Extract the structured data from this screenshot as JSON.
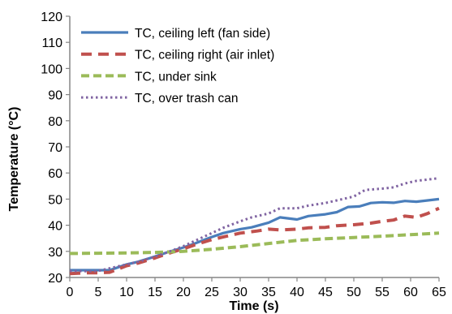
{
  "chart_data": {
    "type": "line",
    "title": "",
    "xlabel": "Time (s)",
    "ylabel": "Temperature (°C)",
    "xlim": [
      0,
      65
    ],
    "ylim": [
      20,
      120
    ],
    "xticks": [
      0,
      5,
      10,
      15,
      20,
      25,
      30,
      35,
      40,
      45,
      50,
      55,
      60,
      65
    ],
    "yticks": [
      20,
      30,
      40,
      50,
      60,
      70,
      80,
      90,
      100,
      110,
      120
    ],
    "grid": false,
    "legend_position": "top-left",
    "series": [
      {
        "name": "TC, ceiling left (fan side)",
        "color": "#4a7ebb",
        "style": "solid",
        "points": [
          [
            0,
            22.8
          ],
          [
            3,
            22.8
          ],
          [
            5,
            22.8
          ],
          [
            7,
            22.8
          ],
          [
            8,
            23.5
          ],
          [
            10,
            25
          ],
          [
            12,
            26
          ],
          [
            15,
            28
          ],
          [
            17,
            29.5
          ],
          [
            20,
            31.5
          ],
          [
            22,
            33
          ],
          [
            25,
            35.5
          ],
          [
            27,
            37
          ],
          [
            30,
            38.5
          ],
          [
            32,
            39.2
          ],
          [
            35,
            41
          ],
          [
            37,
            43
          ],
          [
            40,
            42.2
          ],
          [
            42,
            43.5
          ],
          [
            45,
            44.2
          ],
          [
            47,
            45
          ],
          [
            49,
            47
          ],
          [
            51,
            47.2
          ],
          [
            53,
            48.5
          ],
          [
            55,
            48.8
          ],
          [
            57,
            48.6
          ],
          [
            59,
            49.3
          ],
          [
            61,
            49
          ],
          [
            63,
            49.5
          ],
          [
            65,
            50
          ]
        ]
      },
      {
        "name": "TC, ceiling right (air inlet)",
        "color": "#c0504d",
        "style": "dashed",
        "points": [
          [
            0,
            21.5
          ],
          [
            3,
            21.8
          ],
          [
            5,
            21.8
          ],
          [
            7,
            22
          ],
          [
            10,
            24.5
          ],
          [
            12,
            25.5
          ],
          [
            15,
            27.5
          ],
          [
            17,
            29
          ],
          [
            20,
            31
          ],
          [
            22,
            32.5
          ],
          [
            25,
            34.5
          ],
          [
            27,
            35.5
          ],
          [
            30,
            37
          ],
          [
            33,
            37.8
          ],
          [
            35,
            38.5
          ],
          [
            37,
            38.2
          ],
          [
            40,
            38.5
          ],
          [
            42,
            39
          ],
          [
            45,
            39.2
          ],
          [
            47,
            39.8
          ],
          [
            50,
            40.2
          ],
          [
            53,
            40.8
          ],
          [
            55,
            41.5
          ],
          [
            57,
            42
          ],
          [
            59,
            43.5
          ],
          [
            61,
            43
          ],
          [
            63,
            44.5
          ],
          [
            65,
            46.5
          ]
        ]
      },
      {
        "name": "TC, under sink",
        "color": "#9bbb59",
        "style": "dashed",
        "points": [
          [
            0,
            29.2
          ],
          [
            5,
            29.3
          ],
          [
            10,
            29.4
          ],
          [
            15,
            29.6
          ],
          [
            20,
            30
          ],
          [
            25,
            30.8
          ],
          [
            30,
            31.8
          ],
          [
            35,
            33
          ],
          [
            40,
            34.2
          ],
          [
            45,
            34.8
          ],
          [
            50,
            35.3
          ],
          [
            55,
            35.8
          ],
          [
            60,
            36.4
          ],
          [
            65,
            37
          ]
        ]
      },
      {
        "name": "TC, over trash can",
        "color": "#8064a2",
        "style": "dotted",
        "points": [
          [
            0,
            22.5
          ],
          [
            3,
            22.4
          ],
          [
            5,
            22.5
          ],
          [
            7,
            23.5
          ],
          [
            10,
            25
          ],
          [
            12,
            26
          ],
          [
            15,
            28
          ],
          [
            17,
            29.5
          ],
          [
            20,
            32
          ],
          [
            22,
            34
          ],
          [
            25,
            37
          ],
          [
            27,
            39
          ],
          [
            30,
            41.5
          ],
          [
            32,
            43
          ],
          [
            35,
            44.5
          ],
          [
            37,
            46.5
          ],
          [
            40,
            46.5
          ],
          [
            42,
            47.5
          ],
          [
            45,
            48.5
          ],
          [
            47,
            49.5
          ],
          [
            50,
            51
          ],
          [
            52,
            53.5
          ],
          [
            55,
            54
          ],
          [
            57,
            54.5
          ],
          [
            59,
            56
          ],
          [
            61,
            57
          ],
          [
            63,
            57.5
          ],
          [
            65,
            58
          ]
        ]
      }
    ]
  }
}
